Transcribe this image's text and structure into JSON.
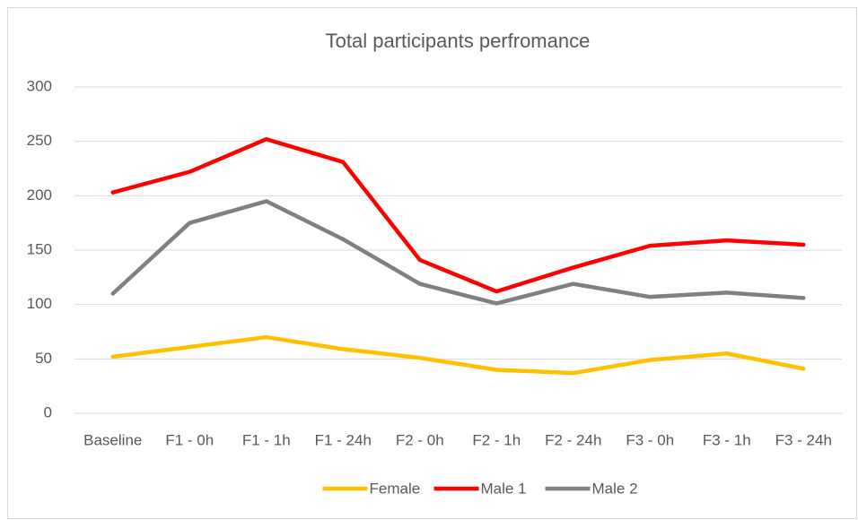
{
  "chart_data": {
    "type": "line",
    "title": "Total participants perfromance",
    "categories": [
      "Baseline",
      "F1 - 0h",
      "F1 - 1h",
      "F1 - 24h",
      "F2 - 0h",
      "F2 - 1h",
      "F2 - 24h",
      "F3 - 0h",
      "F3 - 1h",
      "F3 - 24h"
    ],
    "series": [
      {
        "name": "Female",
        "color": "#ffc000",
        "values": [
          52,
          61,
          70,
          59,
          51,
          40,
          37,
          49,
          55,
          41
        ]
      },
      {
        "name": "Male 1",
        "color": "#ff0000",
        "values": [
          203,
          222,
          252,
          231,
          141,
          112,
          134,
          154,
          159,
          155
        ]
      },
      {
        "name": "Male 2",
        "color": "#808080",
        "values": [
          110,
          175,
          195,
          160,
          119,
          101,
          119,
          107,
          111,
          106
        ]
      }
    ],
    "ylim": [
      0,
      300
    ],
    "yticks": [
      0,
      50,
      100,
      150,
      200,
      250,
      300
    ],
    "grid": true,
    "legend": "bottom"
  }
}
